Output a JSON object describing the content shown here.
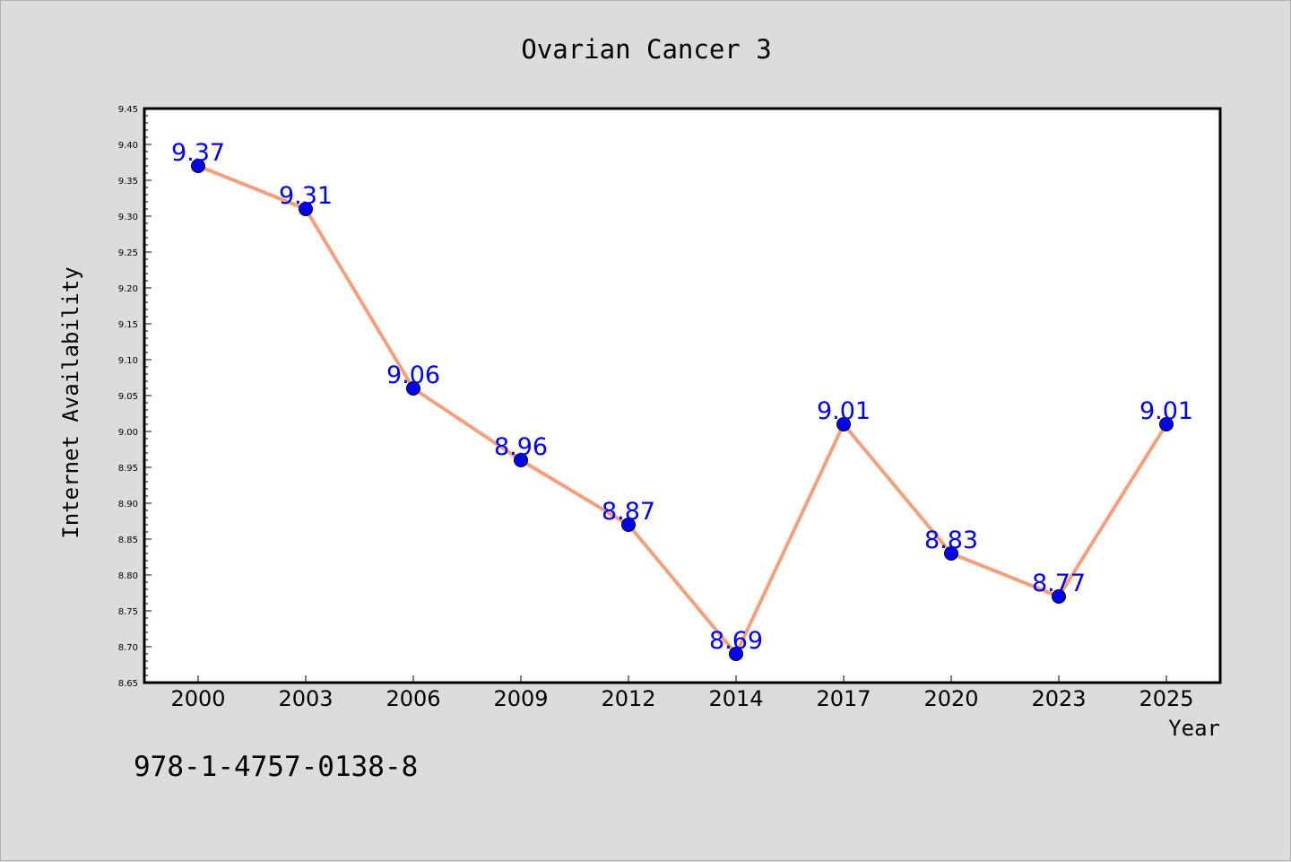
{
  "colors": {
    "background": "#dcdcdc",
    "plot_background": "#ffffff",
    "line": "#f4a07c",
    "marker": "#0000ee",
    "data_label": "#0000ee"
  },
  "footer_text": "978-1-4757-0138-8",
  "chart_data": {
    "type": "line",
    "title": "Ovarian Cancer 3",
    "xlabel": "Year",
    "ylabel": "Internet Availability",
    "categories": [
      "2000",
      "2003",
      "2006",
      "2009",
      "2012",
      "2014",
      "2017",
      "2020",
      "2023",
      "2025"
    ],
    "series": [
      {
        "values": [
          9.37,
          9.31,
          9.06,
          8.96,
          8.87,
          8.69,
          9.01,
          8.83,
          8.77,
          9.01
        ]
      }
    ],
    "ylim": [
      8.65,
      9.45
    ],
    "yticks": [
      "8.65",
      "8.70",
      "8.75",
      "8.80",
      "8.85",
      "8.90",
      "8.95",
      "9.00",
      "9.05",
      "9.10",
      "9.15",
      "9.20",
      "9.25",
      "9.30",
      "9.35",
      "9.40",
      "9.45"
    ],
    "grid": false,
    "legend": "none"
  }
}
